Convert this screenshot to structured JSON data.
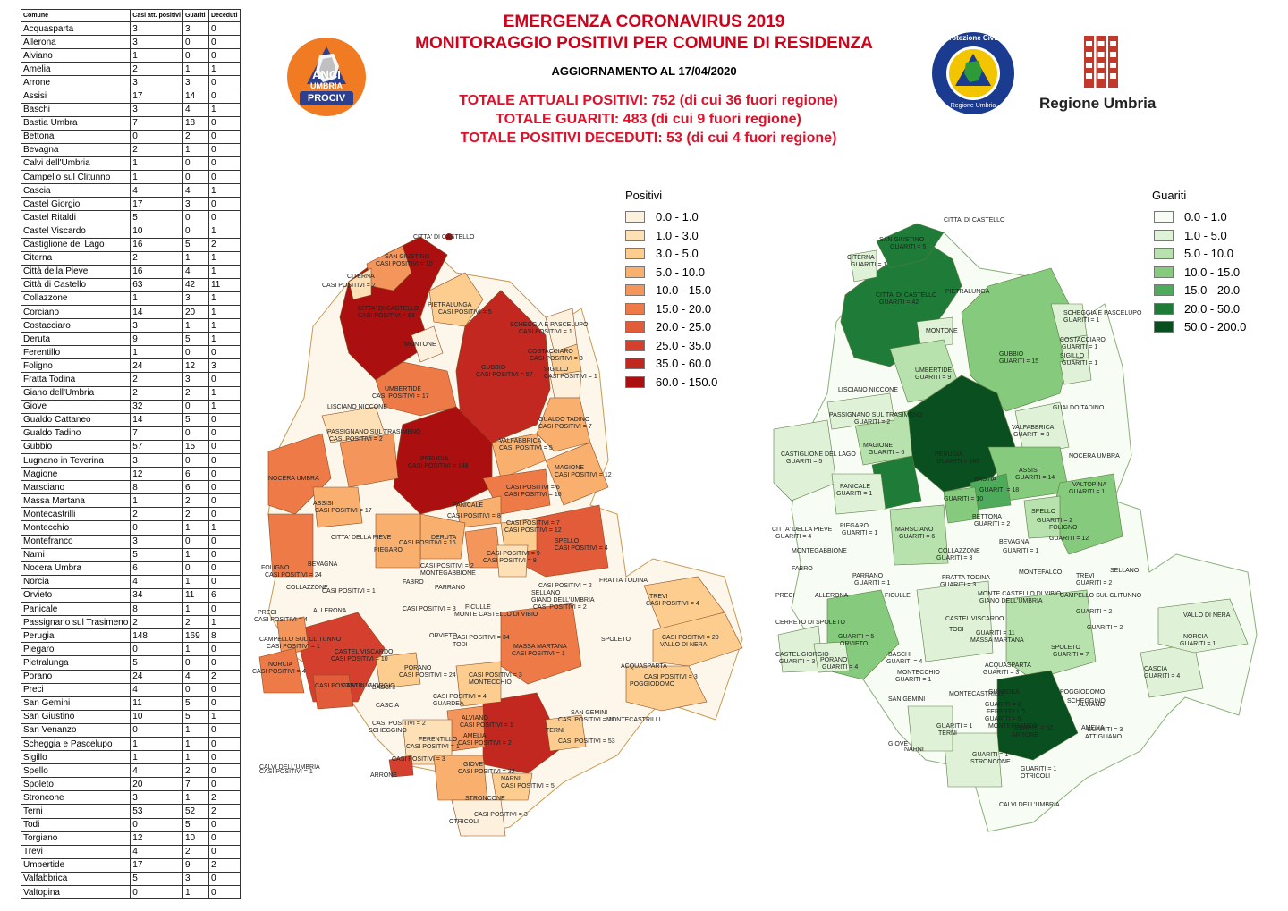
{
  "title_line1": "EMERGENZA CORONAVIRUS 2019",
  "title_line2": "MONITORAGGIO POSITIVI PER COMUNE DI RESIDENZA",
  "update": "AGGIORNAMENTO AL 17/04/2020",
  "totals": [
    "TOTALE ATTUALI POSITIVI: 752 (di cui 36 fuori regione)",
    "TOTALE GUARITI: 483 (di cui 9 fuori regione)",
    "TOTALE POSITIVI DECEDUTI: 53 (di cui 4 fuori regione)"
  ],
  "logos": {
    "anci": [
      "ANCI",
      "UMBRIA",
      "PROCIV"
    ],
    "protezione_civile": [
      "Protezione Civile",
      "Regione Umbria"
    ],
    "regione": "Regione Umbria"
  },
  "table": {
    "headers": [
      "Comune",
      "Casi att. positivi",
      "Guariti",
      "Deceduti"
    ],
    "rows": [
      [
        "Acquasparta",
        "3",
        "3",
        "0"
      ],
      [
        "Allerona",
        "3",
        "0",
        "0"
      ],
      [
        "Alviano",
        "1",
        "0",
        "0"
      ],
      [
        "Amelia",
        "2",
        "1",
        "1"
      ],
      [
        "Arrone",
        "3",
        "3",
        "0"
      ],
      [
        "Assisi",
        "17",
        "14",
        "0"
      ],
      [
        "Baschi",
        "3",
        "4",
        "1"
      ],
      [
        "Bastia Umbra",
        "7",
        "18",
        "0"
      ],
      [
        "Bettona",
        "0",
        "2",
        "0"
      ],
      [
        "Bevagna",
        "2",
        "1",
        "0"
      ],
      [
        "Calvi dell'Umbria",
        "1",
        "0",
        "0"
      ],
      [
        "Campello sul Clitunno",
        "1",
        "0",
        "0"
      ],
      [
        "Cascia",
        "4",
        "4",
        "1"
      ],
      [
        "Castel Giorgio",
        "17",
        "3",
        "0"
      ],
      [
        "Castel Ritaldi",
        "5",
        "0",
        "0"
      ],
      [
        "Castel Viscardo",
        "10",
        "0",
        "1"
      ],
      [
        "Castiglione del Lago",
        "16",
        "5",
        "2"
      ],
      [
        "Citerna",
        "2",
        "1",
        "1"
      ],
      [
        "Città  della Pieve",
        "16",
        "4",
        "1"
      ],
      [
        "Città  di Castello",
        "63",
        "42",
        "11"
      ],
      [
        "Collazzone",
        "1",
        "3",
        "1"
      ],
      [
        "Corciano",
        "14",
        "20",
        "1"
      ],
      [
        "Costacciaro",
        "3",
        "1",
        "1"
      ],
      [
        "Deruta",
        "9",
        "5",
        "1"
      ],
      [
        "Ferentillo",
        "1",
        "0",
        "0"
      ],
      [
        "Foligno",
        "24",
        "12",
        "3"
      ],
      [
        "Fratta Todina",
        "2",
        "3",
        "0"
      ],
      [
        "Giano dell'Umbria",
        "2",
        "2",
        "1"
      ],
      [
        "Giove",
        "32",
        "0",
        "1"
      ],
      [
        "Gualdo Cattaneo",
        "14",
        "5",
        "0"
      ],
      [
        "Gualdo Tadino",
        "7",
        "0",
        "0"
      ],
      [
        "Gubbio",
        "57",
        "15",
        "0"
      ],
      [
        "Lugnano in Teverina",
        "3",
        "0",
        "0"
      ],
      [
        "Magione",
        "12",
        "6",
        "0"
      ],
      [
        "Marsciano",
        "8",
        "6",
        "0"
      ],
      [
        "Massa Martana",
        "1",
        "2",
        "0"
      ],
      [
        "Montecastrilli",
        "2",
        "2",
        "0"
      ],
      [
        "Montecchio",
        "0",
        "1",
        "1"
      ],
      [
        "Montefranco",
        "3",
        "0",
        "0"
      ],
      [
        "Narni",
        "5",
        "1",
        "0"
      ],
      [
        "Nocera Umbra",
        "6",
        "0",
        "0"
      ],
      [
        "Norcia",
        "4",
        "1",
        "0"
      ],
      [
        "Orvieto",
        "34",
        "11",
        "6"
      ],
      [
        "Panicale",
        "8",
        "1",
        "0"
      ],
      [
        "Passignano sul Trasimeno",
        "2",
        "2",
        "1"
      ],
      [
        "Perugia",
        "148",
        "169",
        "8"
      ],
      [
        "Piegaro",
        "0",
        "1",
        "0"
      ],
      [
        "Pietralunga",
        "5",
        "0",
        "0"
      ],
      [
        "Porano",
        "24",
        "4",
        "2"
      ],
      [
        "Preci",
        "4",
        "0",
        "0"
      ],
      [
        "San Gemini",
        "11",
        "5",
        "0"
      ],
      [
        "San Giustino",
        "10",
        "5",
        "1"
      ],
      [
        "San Venanzo",
        "0",
        "1",
        "0"
      ],
      [
        "Scheggia e Pascelupo",
        "1",
        "1",
        "0"
      ],
      [
        "Sigillo",
        "1",
        "1",
        "0"
      ],
      [
        "Spello",
        "4",
        "2",
        "0"
      ],
      [
        "Spoleto",
        "20",
        "7",
        "0"
      ],
      [
        "Stroncone",
        "3",
        "1",
        "2"
      ],
      [
        "Terni",
        "53",
        "52",
        "2"
      ],
      [
        "Todi",
        "0",
        "5",
        "0"
      ],
      [
        "Torgiano",
        "12",
        "10",
        "0"
      ],
      [
        "Trevi",
        "4",
        "2",
        "0"
      ],
      [
        "Umbertide",
        "17",
        "9",
        "2"
      ],
      [
        "Valfabbrica",
        "5",
        "3",
        "0"
      ],
      [
        "Valtopina",
        "0",
        "1",
        "0"
      ]
    ]
  },
  "legend_positivi": {
    "title": "Positivi",
    "classes": [
      {
        "label": "0.0 - 1.0",
        "color": "#fdf1dd"
      },
      {
        "label": "1.0 - 3.0",
        "color": "#fde0b5"
      },
      {
        "label": "3.0 - 5.0",
        "color": "#fccd8f"
      },
      {
        "label": "5.0 - 10.0",
        "color": "#f9b06f"
      },
      {
        "label": "10.0 - 15.0",
        "color": "#f4955b"
      },
      {
        "label": "15.0 - 20.0",
        "color": "#ee7a48"
      },
      {
        "label": "20.0 - 25.0",
        "color": "#e25c39"
      },
      {
        "label": "25.0 - 35.0",
        "color": "#d43f2e"
      },
      {
        "label": "35.0 - 60.0",
        "color": "#c22720"
      },
      {
        "label": "60.0 - 150.0",
        "color": "#ac0f10"
      }
    ]
  },
  "legend_guariti": {
    "title": "Guariti",
    "classes": [
      {
        "label": "0.0 - 1.0",
        "color": "#f7fcf5"
      },
      {
        "label": "1.0 - 5.0",
        "color": "#dff2d8"
      },
      {
        "label": "5.0 - 10.0",
        "color": "#b8e2ad"
      },
      {
        "label": "10.0 - 15.0",
        "color": "#86cb7d"
      },
      {
        "label": "15.0 - 20.0",
        "color": "#4eab5b"
      },
      {
        "label": "20.0 - 50.0",
        "color": "#1e7c38"
      },
      {
        "label": "50.0 - 200.0",
        "color": "#0a4f20"
      }
    ]
  },
  "map_positivi_labels": [
    "CITTA' DI CASTELLO",
    "SAN GIUSTINO",
    "CASI POSITIVI = 10",
    "CITERNA",
    "CASI POSITIVI = 2",
    "CITTA' DI CASTELLO",
    "CASI POSITIVI = 63",
    "PIETRALUNGA",
    "CASI POSITIVI = 5",
    "MONTONE",
    "SCHEGGIA E PASCELUPO",
    "CASI POSITIVI = 1",
    "COSTACCIARO",
    "CASI POSITIVI = 3",
    "SIGILLO",
    "CASI POSITIVI = 1",
    "GUBBIO",
    "CASI POSITIVI = 57",
    "UMBERTIDE",
    "CASI POSITIVI = 17",
    "LISCIANO NICCONE",
    "GUALDO TADINO",
    "CASI POSITIVI = 7",
    "PASSIGNANO SUL TRASIMENO",
    "CASI POSITIVI = 2",
    "VALFABBRICA",
    "CASI POSITIVI = 5",
    "PERUGIA",
    "CASI POSITIVI = 148",
    "MAGIONE",
    "CASI POSITIVI = 12",
    "NOCERA UMBRA",
    "CASI POSITIVI = 6",
    "CASI POSITIVI = 16",
    "ASSISI",
    "CASI POSITIVI = 17",
    "PANICALE",
    "CASI POSITIVI = 8",
    "CASI POSITIVI = 7",
    "CASI POSITIVI = 12",
    "SPELLO",
    "CASI POSITIVI = 4",
    "FOLIGNO",
    "CASI POSITIVI = 24",
    "CITTA' DELLA PIEVE",
    "CASI POSITIVI = 16",
    "PIEGARO",
    "DERUTA",
    "CASI POSITIVI = 9",
    "CASI POSITIVI = 8",
    "BEVAGNA",
    "CASI POSITIVI = 2",
    "MONTEGABBIONE",
    "COLLAZZONE",
    "CASI POSITIVI = 1",
    "FABRO",
    "PARRANO",
    "FRATTA TODINA",
    "CASI POSITIVI = 2",
    "SELLANO",
    "TREVI",
    "CASI POSITIVI = 4",
    "PRECI",
    "CASI POSITIVI = 4",
    "ALLERONA",
    "CASI POSITIVI = 3",
    "FICULLE",
    "MONTE CASTELLO DI VIBIO",
    "GIANO DELL'UMBRIA",
    "CASI POSITIVI = 2",
    "CAMPELLO SUL CLITUNNO",
    "CASI POSITIVI = 1",
    "CASTEL VISCARDO",
    "CASI POSITIVI = 10",
    "ORVIETO",
    "CASI POSITIVI = 34",
    "TODI",
    "MASSA MARTANA",
    "CASI POSITIVI = 1",
    "SPOLETO",
    "CASI POSITIVI = 20",
    "VALLO DI NERA",
    "NORCIA",
    "CASI POSITIVI = 4",
    "CASTEL GIORGIO",
    "CASI POSITIVI = 17",
    "PORANO",
    "CASI POSITIVI = 24",
    "BASCHI",
    "CASI POSITIVI = 3",
    "MONTECCHIO",
    "ACQUASPARTA",
    "CASI POSITIVI = 3",
    "POGGIODOMO",
    "CASCIA",
    "CASI POSITIVI = 4",
    "GUARDEA",
    "MONTECASTRILLI",
    "CASI POSITIVI = 2",
    "SCHEGGINO",
    "ALVIANO",
    "CASI POSITIVI = 1",
    "SAN GEMINI",
    "CASI POSITIVI = 11",
    "FERENTILLO",
    "CASI POSITIVI = 1",
    "AMELIA",
    "CASI POSITIVI = 2",
    "TERNI",
    "CASI POSITIVI = 53",
    "CASI POSITIVI = 3",
    "ARRONE",
    "GIOVE",
    "CASI POSITIVI = 32",
    "NARNI",
    "CASI POSITIVI = 5",
    "STRONCONE",
    "CASI POSITIVI = 3",
    "OTRICOLI",
    "CALVI DELL'UMBRIA",
    "CASI POSITIVI = 1"
  ],
  "map_guariti_labels": [
    "CITTA' DI CASTELLO",
    "SAN GIUSTINO",
    "GUARITI = 5",
    "CITERNA",
    "GUARITI = 1",
    "CITTA' DI CASTELLO",
    "GUARITI = 42",
    "PIETRALUNGA",
    "MONTONE",
    "SCHEGGIA E PASCELUPO",
    "GUARITI = 1",
    "COSTACCIARO",
    "GUARITI = 1",
    "SIGILLO",
    "GUARITI = 1",
    "GUBBIO",
    "GUARITI = 15",
    "UMBERTIDE",
    "GUARITI = 9",
    "LISCIANO NICCONE",
    "GUALDO TADINO",
    "PASSIGNANO SUL TRASIMENO",
    "GUARITI = 2",
    "VALFABBRICA",
    "GUARITI = 3",
    "PERUGIA",
    "GUARITI = 169",
    "MAGIONE",
    "GUARITI = 6",
    "NOCERA UMBRA",
    "CASTIGLIONE DEL LAGO",
    "GUARITI = 5",
    "ASSISI",
    "GUARITI = 14",
    "BASTIA",
    "GUARITI = 18",
    "VALTOPINA",
    "GUARITI = 1",
    "PANICALE",
    "GUARITI = 1",
    "GUARITI = 10",
    "BETTONA",
    "GUARITI = 2",
    "SPELLO",
    "GUARITI = 2",
    "FOLIGNO",
    "GUARITI = 12",
    "CITTA' DELLA PIEVE",
    "GUARITI = 4",
    "PIEGARO",
    "GUARITI = 1",
    "MARSCIANO",
    "GUARITI = 6",
    "BEVAGNA",
    "GUARITI = 1",
    "MONTEGABBIONE",
    "COLLAZZONE",
    "GUARITI = 3",
    "FABRO",
    "MONTEFALCO",
    "SELLANO",
    "TREVI",
    "GUARITI = 2",
    "PARRANO",
    "GUARITI = 1",
    "FRATTA TODINA",
    "GUARITI = 3",
    "CAMPELLO SUL CLITUNNO",
    "PRECI",
    "ALLERONA",
    "FICULLE",
    "MONTE CASTELLO DI VIBIO",
    "GIANO DELL'UMBRIA",
    "GUARITI = 2",
    "CERRETO DI SPOLETO",
    "CASTEL VISCARDO",
    "TODI",
    "GUARITI = 5",
    "ORVIETO",
    "GUARITI = 11",
    "MASSA MARTANA",
    "GUARITI = 2",
    "VALLO DI NERA",
    "NORCIA",
    "GUARITI = 1",
    "CASTEL GIORGIO",
    "GUARITI = 3",
    "PORANO",
    "GUARITI = 4",
    "BASCHI",
    "GUARITI = 4",
    "SPOLETO",
    "GUARITI = 7",
    "CASCIA",
    "GUARITI = 4",
    "MONTECCHIO",
    "GUARITI = 1",
    "ACQUASPARTA",
    "GUARITI = 3",
    "POGGIODOMO",
    "SCHEGGINO",
    "GUARDEA",
    "MONTECASTRILLI",
    "GUARITI = 2",
    "FERENTILLO",
    "ALVIANO",
    "SAN GEMINI",
    "GUARITI = 5",
    "MONTEFRANCO",
    "AMELIA",
    "GUARITI = 1",
    "TERNI",
    "GUARITI = 52",
    "ARRONE",
    "GUARITI = 3",
    "ATTIGLIANO",
    "GIOVE",
    "NARNI",
    "GUARITI = 1",
    "STRONCONE",
    "GUARITI = 1",
    "OTRICOLI",
    "CALVI DELL'UMBRIA"
  ]
}
